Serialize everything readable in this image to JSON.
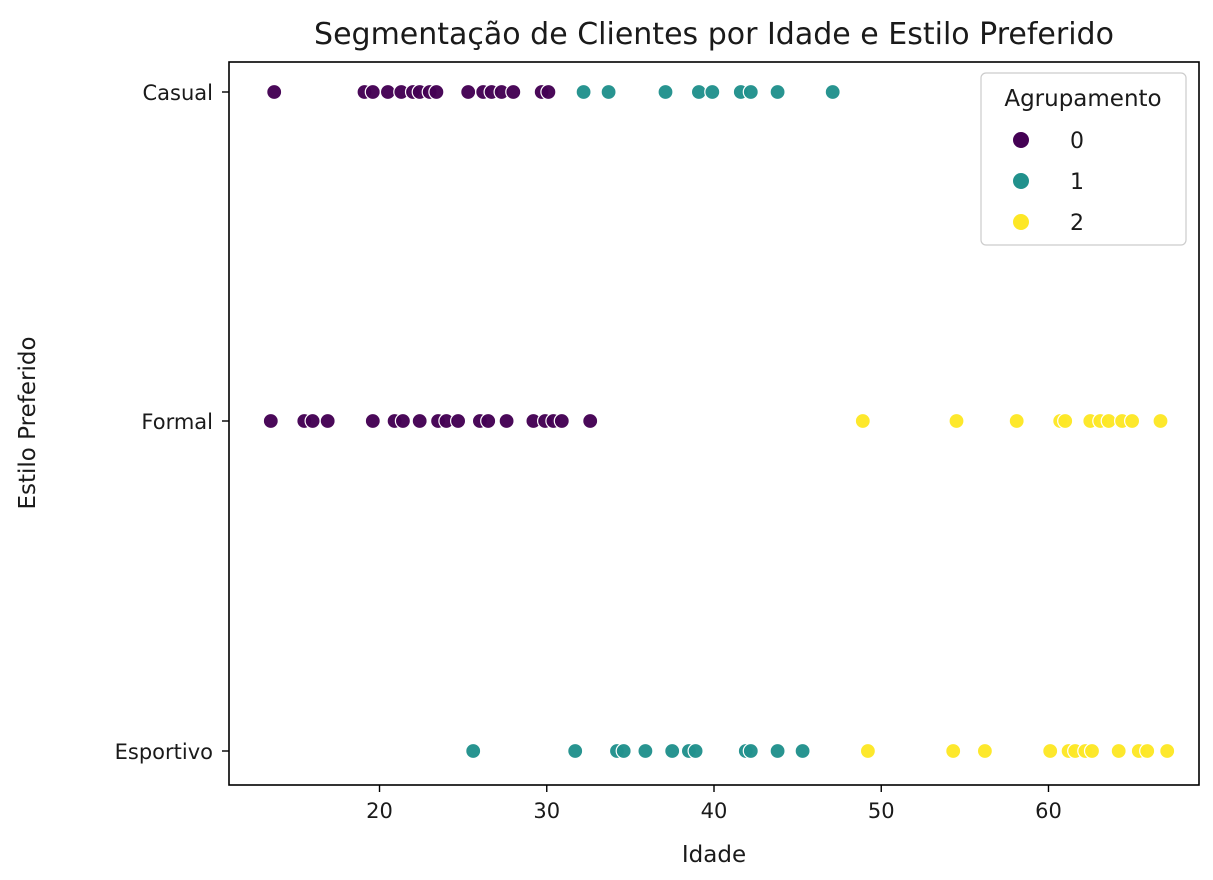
{
  "chart_data": {
    "type": "scatter",
    "title": "Segmentação de Clientes por Idade e Estilo Preferido",
    "xlabel": "Idade",
    "ylabel": "Estilo Preferido",
    "xlim": [
      11,
      69
    ],
    "x_ticks": [
      20,
      30,
      40,
      50,
      60
    ],
    "y_categories": [
      "Casual",
      "Formal",
      "Esportivo"
    ],
    "grid": false,
    "legend": {
      "title": "Agrupamento",
      "placement": "top-right",
      "entries": [
        "0",
        "1",
        "2"
      ]
    },
    "colors": {
      "0": "#440154",
      "1": "#21918c",
      "2": "#fde725"
    },
    "series": [
      {
        "name": "0",
        "color": "#440154",
        "points": [
          {
            "x": 13.7,
            "y": "Casual"
          },
          {
            "x": 19.1,
            "y": "Casual"
          },
          {
            "x": 19.6,
            "y": "Casual"
          },
          {
            "x": 20.5,
            "y": "Casual"
          },
          {
            "x": 21.3,
            "y": "Casual"
          },
          {
            "x": 22.0,
            "y": "Casual"
          },
          {
            "x": 22.4,
            "y": "Casual"
          },
          {
            "x": 23.0,
            "y": "Casual"
          },
          {
            "x": 23.4,
            "y": "Casual"
          },
          {
            "x": 25.3,
            "y": "Casual"
          },
          {
            "x": 26.2,
            "y": "Casual"
          },
          {
            "x": 26.7,
            "y": "Casual"
          },
          {
            "x": 27.3,
            "y": "Casual"
          },
          {
            "x": 28.0,
            "y": "Casual"
          },
          {
            "x": 29.7,
            "y": "Casual"
          },
          {
            "x": 30.1,
            "y": "Casual"
          },
          {
            "x": 13.5,
            "y": "Formal"
          },
          {
            "x": 15.5,
            "y": "Formal"
          },
          {
            "x": 16.0,
            "y": "Formal"
          },
          {
            "x": 16.9,
            "y": "Formal"
          },
          {
            "x": 19.6,
            "y": "Formal"
          },
          {
            "x": 20.9,
            "y": "Formal"
          },
          {
            "x": 21.4,
            "y": "Formal"
          },
          {
            "x": 22.4,
            "y": "Formal"
          },
          {
            "x": 23.5,
            "y": "Formal"
          },
          {
            "x": 24.0,
            "y": "Formal"
          },
          {
            "x": 24.7,
            "y": "Formal"
          },
          {
            "x": 26.0,
            "y": "Formal"
          },
          {
            "x": 26.5,
            "y": "Formal"
          },
          {
            "x": 27.6,
            "y": "Formal"
          },
          {
            "x": 29.2,
            "y": "Formal"
          },
          {
            "x": 29.9,
            "y": "Formal"
          },
          {
            "x": 30.4,
            "y": "Formal"
          },
          {
            "x": 30.9,
            "y": "Formal"
          },
          {
            "x": 32.6,
            "y": "Formal"
          }
        ]
      },
      {
        "name": "1",
        "color": "#21918c",
        "points": [
          {
            "x": 32.2,
            "y": "Casual"
          },
          {
            "x": 33.7,
            "y": "Casual"
          },
          {
            "x": 37.1,
            "y": "Casual"
          },
          {
            "x": 39.1,
            "y": "Casual"
          },
          {
            "x": 39.9,
            "y": "Casual"
          },
          {
            "x": 41.6,
            "y": "Casual"
          },
          {
            "x": 42.2,
            "y": "Casual"
          },
          {
            "x": 43.8,
            "y": "Casual"
          },
          {
            "x": 47.1,
            "y": "Casual"
          },
          {
            "x": 25.6,
            "y": "Esportivo"
          },
          {
            "x": 31.7,
            "y": "Esportivo"
          },
          {
            "x": 34.2,
            "y": "Esportivo"
          },
          {
            "x": 34.6,
            "y": "Esportivo"
          },
          {
            "x": 35.9,
            "y": "Esportivo"
          },
          {
            "x": 37.5,
            "y": "Esportivo"
          },
          {
            "x": 38.5,
            "y": "Esportivo"
          },
          {
            "x": 38.9,
            "y": "Esportivo"
          },
          {
            "x": 41.9,
            "y": "Esportivo"
          },
          {
            "x": 42.2,
            "y": "Esportivo"
          },
          {
            "x": 43.8,
            "y": "Esportivo"
          },
          {
            "x": 45.3,
            "y": "Esportivo"
          }
        ]
      },
      {
        "name": "2",
        "color": "#fde725",
        "points": [
          {
            "x": 48.9,
            "y": "Formal"
          },
          {
            "x": 54.5,
            "y": "Formal"
          },
          {
            "x": 58.1,
            "y": "Formal"
          },
          {
            "x": 60.7,
            "y": "Formal"
          },
          {
            "x": 61.0,
            "y": "Formal"
          },
          {
            "x": 62.5,
            "y": "Formal"
          },
          {
            "x": 63.1,
            "y": "Formal"
          },
          {
            "x": 63.6,
            "y": "Formal"
          },
          {
            "x": 64.4,
            "y": "Formal"
          },
          {
            "x": 65.0,
            "y": "Formal"
          },
          {
            "x": 66.7,
            "y": "Formal"
          },
          {
            "x": 49.2,
            "y": "Esportivo"
          },
          {
            "x": 54.3,
            "y": "Esportivo"
          },
          {
            "x": 56.2,
            "y": "Esportivo"
          },
          {
            "x": 60.1,
            "y": "Esportivo"
          },
          {
            "x": 61.2,
            "y": "Esportivo"
          },
          {
            "x": 61.6,
            "y": "Esportivo"
          },
          {
            "x": 62.2,
            "y": "Esportivo"
          },
          {
            "x": 62.6,
            "y": "Esportivo"
          },
          {
            "x": 64.2,
            "y": "Esportivo"
          },
          {
            "x": 65.4,
            "y": "Esportivo"
          },
          {
            "x": 65.9,
            "y": "Esportivo"
          },
          {
            "x": 67.1,
            "y": "Esportivo"
          }
        ]
      }
    ]
  }
}
